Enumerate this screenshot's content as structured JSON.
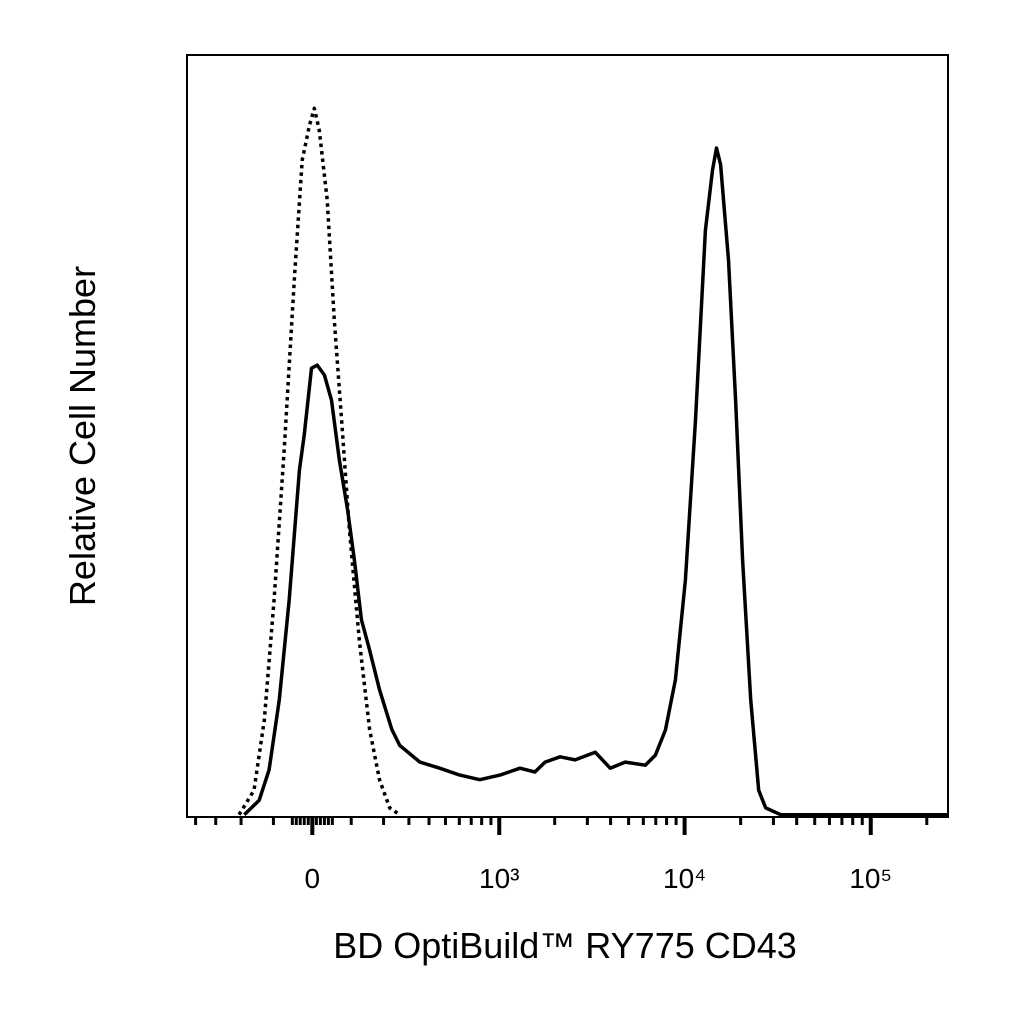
{
  "chart_data": {
    "type": "line",
    "xlabel": "BD OptiBuild™ RY775 CD43",
    "ylabel": "Relative Cell Number",
    "xscale": "biexponential",
    "xlim": [
      -450,
      260000
    ],
    "ylim": [
      0,
      100
    ],
    "xticks": [
      0,
      {
        "value": 1000,
        "label": "10³"
      },
      {
        "value": 10000,
        "label": "10⁴"
      },
      {
        "value": 100000,
        "label": "10⁵"
      }
    ],
    "xminorticks": [
      -400,
      -300,
      -200,
      -100,
      -50,
      -40,
      -30,
      -20,
      -10,
      10,
      20,
      30,
      40,
      50,
      100,
      200,
      300,
      400,
      500,
      600,
      700,
      800,
      900,
      2000,
      3000,
      4000,
      5000,
      6000,
      7000,
      8000,
      9000,
      20000,
      30000,
      40000,
      50000,
      60000,
      70000,
      80000,
      90000,
      200000
    ],
    "series": [
      {
        "color": "#000000",
        "style": "dotted",
        "x": [
          -207,
          -157,
          -126,
          -98,
          -71,
          -45,
          -25,
          -7,
          5,
          17,
          37,
          55,
          74,
          95,
          123,
          154,
          186,
          222,
          261
        ],
        "values": [
          0.3,
          3.5,
          12.7,
          28.5,
          48.2,
          70.5,
          86.2,
          90.8,
          93.0,
          90.2,
          81.0,
          65.2,
          52.1,
          37.7,
          23.2,
          11.5,
          4.9,
          1.2,
          0.3
        ]
      },
      {
        "color": "#000000",
        "style": "solid",
        "x": [
          -189,
          -141,
          -112,
          -84,
          -58,
          -32,
          -20,
          -2,
          12,
          30,
          48,
          68,
          90,
          109,
          129,
          154,
          186,
          230,
          261,
          352,
          463,
          604,
          781,
          1008,
          1298,
          1564,
          1774,
          2140,
          2578,
          3306,
          3980,
          4794,
          6146,
          6960,
          7880,
          8920,
          10100,
          11440,
          12940,
          14120,
          14840,
          15600,
          17220,
          18800,
          20500,
          22640,
          25000,
          27260,
          32840,
          260000
        ],
        "values": [
          0.3,
          2.2,
          6.2,
          15.4,
          28.5,
          45.5,
          50.1,
          58.9,
          59.3,
          58.0,
          54.7,
          46.9,
          40.3,
          33.7,
          25.9,
          21.9,
          16.7,
          11.5,
          9.4,
          7.2,
          6.4,
          5.5,
          4.9,
          5.5,
          6.4,
          5.9,
          7.2,
          7.9,
          7.5,
          8.5,
          6.4,
          7.2,
          6.8,
          8.1,
          11.4,
          18.0,
          31.1,
          52.1,
          77.0,
          84.9,
          87.8,
          85.6,
          73.1,
          54.7,
          33.7,
          15.4,
          3.5,
          1.2,
          0.3,
          0.3
        ]
      }
    ]
  }
}
